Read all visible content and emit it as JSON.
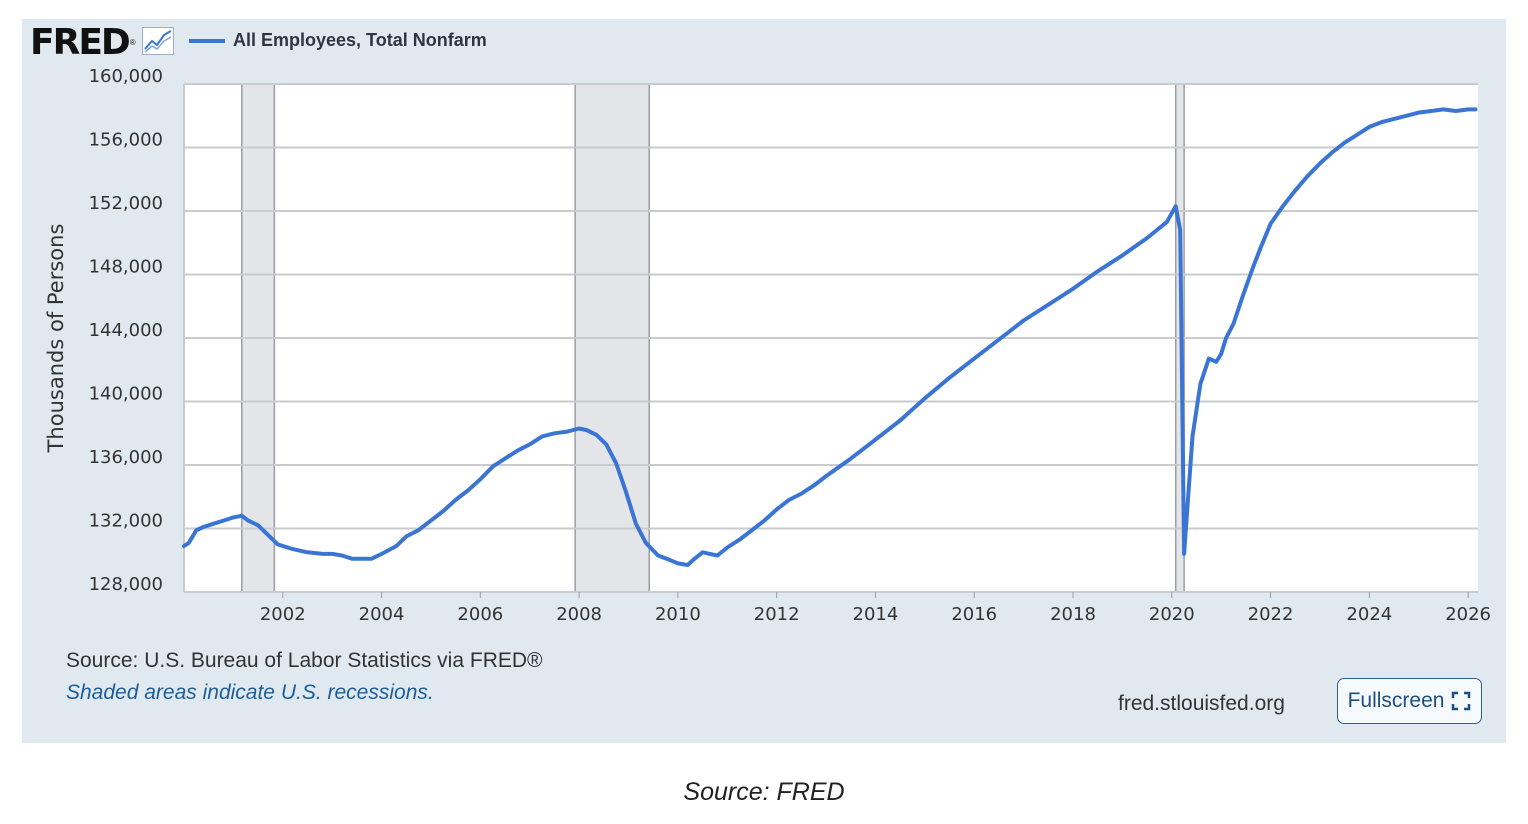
{
  "logo": {
    "text": "FRED",
    "reg": "®",
    "icon": "trend-graph-icon"
  },
  "legend": {
    "label": "All Employees, Total Nonfarm",
    "color": "#3a75d4"
  },
  "footer": {
    "source": "Source: U.S. Bureau of Labor Statistics via FRED®",
    "recession_note": "Shaded areas indicate U.S. recessions.",
    "url": "fred.stlouisfed.org",
    "fullscreen_label": "Fullscreen",
    "fullscreen_icon": "expand-icon"
  },
  "caption": "Source: FRED",
  "chart_data": {
    "type": "line",
    "ylabel": "Thousands of Persons",
    "xlim": [
      2000.0,
      2026.2
    ],
    "ylim": [
      128000,
      160000
    ],
    "yticks": [
      128000,
      132000,
      136000,
      140000,
      144000,
      148000,
      152000,
      156000,
      160000
    ],
    "ytick_labels": [
      "128,000",
      "132,000",
      "136,000",
      "140,000",
      "144,000",
      "148,000",
      "152,000",
      "156,000",
      "160,000"
    ],
    "xticks": [
      2002,
      2004,
      2006,
      2008,
      2010,
      2012,
      2014,
      2016,
      2018,
      2020,
      2022,
      2024,
      2026
    ],
    "xtick_labels": [
      "2002",
      "2004",
      "2006",
      "2008",
      "2010",
      "2012",
      "2014",
      "2016",
      "2018",
      "2020",
      "2022",
      "2024",
      "2026"
    ],
    "grid": true,
    "legend_position": "top-left",
    "recessions": [
      [
        2001.17,
        2001.83
      ],
      [
        2007.92,
        2009.42
      ],
      [
        2020.08,
        2020.25
      ]
    ],
    "series": [
      {
        "name": "All Employees, Total Nonfarm",
        "color": "#3a75d4",
        "x": [
          2000.0,
          2000.1,
          2000.25,
          2000.4,
          2000.6,
          2000.8,
          2001.0,
          2001.17,
          2001.3,
          2001.5,
          2001.7,
          2001.9,
          2002.2,
          2002.5,
          2002.8,
          2003.0,
          2003.2,
          2003.4,
          2003.6,
          2003.8,
          2004.0,
          2004.3,
          2004.5,
          2004.75,
          2005.0,
          2005.25,
          2005.5,
          2005.75,
          2006.0,
          2006.25,
          2006.5,
          2006.75,
          2007.0,
          2007.25,
          2007.5,
          2007.75,
          2008.0,
          2008.15,
          2008.35,
          2008.55,
          2008.75,
          2008.95,
          2009.15,
          2009.35,
          2009.6,
          2009.85,
          2010.0,
          2010.2,
          2010.3,
          2010.5,
          2010.65,
          2010.8,
          2011.0,
          2011.25,
          2011.5,
          2011.75,
          2012.0,
          2012.25,
          2012.5,
          2012.75,
          2013.0,
          2013.5,
          2014.0,
          2014.5,
          2015.0,
          2015.5,
          2016.0,
          2016.5,
          2017.0,
          2017.5,
          2018.0,
          2018.5,
          2019.0,
          2019.5,
          2019.9,
          2020.08,
          2020.17,
          2020.25,
          2020.32,
          2020.42,
          2020.58,
          2020.75,
          2020.9,
          2021.0,
          2021.1,
          2021.25,
          2021.4,
          2021.5,
          2021.65,
          2021.8,
          2022.0,
          2022.25,
          2022.5,
          2022.75,
          2023.0,
          2023.25,
          2023.5,
          2023.75,
          2024.0,
          2024.25,
          2024.5,
          2024.75,
          2025.0,
          2025.25,
          2025.5,
          2025.75,
          2026.0,
          2026.15
        ],
        "values": [
          130900,
          131100,
          131900,
          132100,
          132300,
          132500,
          132700,
          132800,
          132500,
          132200,
          131600,
          131000,
          130700,
          130500,
          130400,
          130400,
          130300,
          130100,
          130100,
          130100,
          130400,
          130900,
          131500,
          131900,
          132500,
          133100,
          133800,
          134400,
          135100,
          135900,
          136400,
          136900,
          137300,
          137800,
          138000,
          138100,
          138300,
          138200,
          137900,
          137300,
          136100,
          134300,
          132300,
          131100,
          130300,
          130000,
          129800,
          129700,
          130000,
          130500,
          130400,
          130300,
          130800,
          131300,
          131900,
          132500,
          133200,
          133800,
          134200,
          134700,
          135300,
          136400,
          137600,
          138800,
          140200,
          141500,
          142700,
          143900,
          145100,
          146100,
          147100,
          148200,
          149200,
          150300,
          151300,
          152300,
          150800,
          130400,
          133500,
          137800,
          141100,
          142700,
          142500,
          143000,
          144000,
          144900,
          146300,
          147200,
          148500,
          149700,
          151200,
          152300,
          153300,
          154200,
          155000,
          155700,
          156300,
          156800,
          157300,
          157600,
          157800,
          158000,
          158200,
          158300,
          158400,
          158300,
          158400,
          158400
        ]
      }
    ]
  }
}
